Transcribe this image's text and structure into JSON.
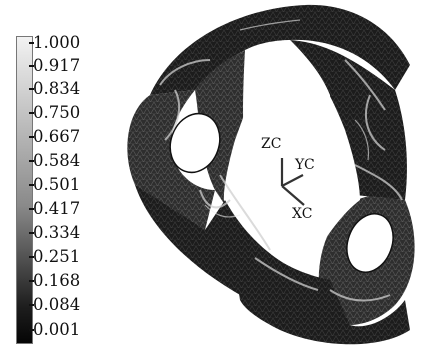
{
  "legend": {
    "values": [
      "1.000",
      "0.917",
      "0.834",
      "0.750",
      "0.667",
      "0.584",
      "0.501",
      "0.417",
      "0.334",
      "0.251",
      "0.168",
      "0.084",
      "0.001"
    ]
  },
  "axes": {
    "z": "ZC",
    "y": "YC",
    "x": "XC"
  },
  "colors": {
    "mesh_dark": "#1b1b1b",
    "mesh_mid": "#5a5a5a",
    "highlight": "#d8d8d8"
  }
}
